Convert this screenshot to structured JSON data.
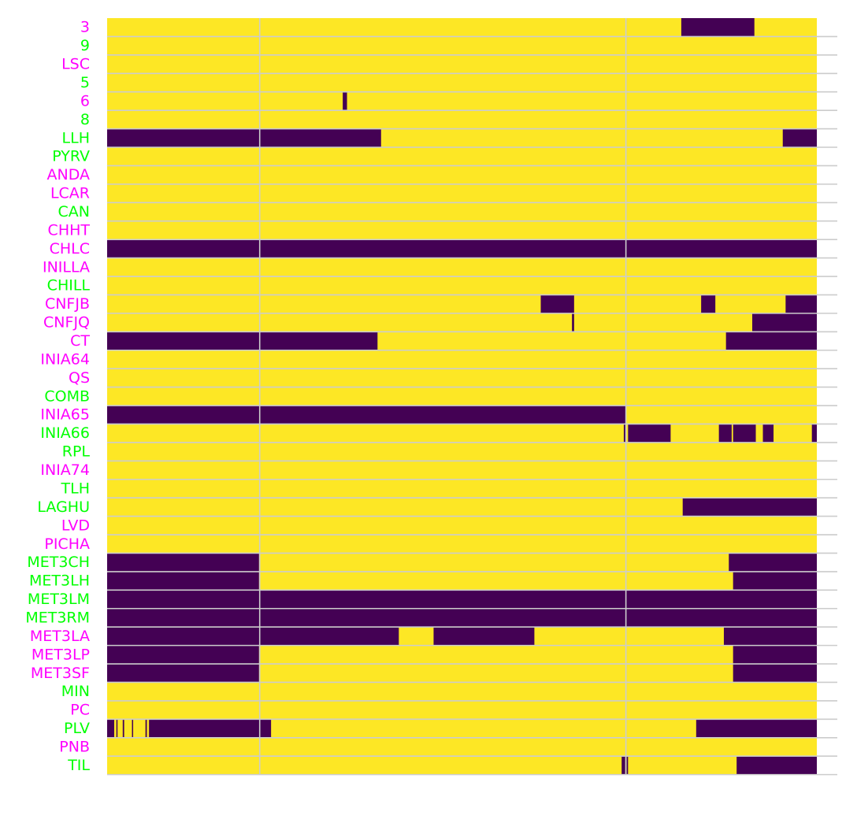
{
  "chart_data": {
    "type": "heatmap",
    "title": "",
    "xlabel": "",
    "ylabel": "",
    "x_range": [
      0,
      1
    ],
    "value_colors": {
      "1": "#fde725",
      "0": "#440154"
    },
    "grid": true,
    "grid_color": "#cccccc",
    "x_gridlines": [
      0.215,
      0.731
    ],
    "label_colors": {
      "magenta": "#ff00ff",
      "green": "#00ff00"
    },
    "rows": [
      {
        "label": "3",
        "label_color": "magenta",
        "absent": [
          [
            0.809,
            0.912
          ]
        ]
      },
      {
        "label": "9",
        "label_color": "green",
        "absent": []
      },
      {
        "label": "LSC",
        "label_color": "magenta",
        "absent": []
      },
      {
        "label": "5",
        "label_color": "green",
        "absent": []
      },
      {
        "label": "6",
        "label_color": "magenta",
        "absent": [
          [
            0.332,
            0.338
          ]
        ]
      },
      {
        "label": "8",
        "label_color": "green",
        "absent": []
      },
      {
        "label": "LLH",
        "label_color": "green",
        "absent": [
          [
            0,
            0.386
          ],
          [
            0.952,
            1
          ]
        ]
      },
      {
        "label": "PYRV",
        "label_color": "green",
        "absent": []
      },
      {
        "label": "ANDA",
        "label_color": "magenta",
        "absent": []
      },
      {
        "label": "LCAR",
        "label_color": "magenta",
        "absent": []
      },
      {
        "label": "CAN",
        "label_color": "green",
        "absent": []
      },
      {
        "label": "CHHT",
        "label_color": "magenta",
        "absent": []
      },
      {
        "label": "CHLC",
        "label_color": "magenta",
        "absent": [
          [
            0,
            1
          ]
        ]
      },
      {
        "label": "INILLA",
        "label_color": "magenta",
        "absent": []
      },
      {
        "label": "CHILL",
        "label_color": "green",
        "absent": []
      },
      {
        "label": "CNFJB",
        "label_color": "magenta",
        "absent": [
          [
            0.611,
            0.658
          ],
          [
            0.837,
            0.857
          ],
          [
            0.956,
            1
          ]
        ]
      },
      {
        "label": "CNFJQ",
        "label_color": "magenta",
        "absent": [
          [
            0.655,
            0.658
          ],
          [
            0.909,
            1
          ]
        ]
      },
      {
        "label": "CT",
        "label_color": "magenta",
        "absent": [
          [
            0,
            0.381
          ],
          [
            0.872,
            1
          ]
        ]
      },
      {
        "label": "INIA64",
        "label_color": "magenta",
        "absent": []
      },
      {
        "label": "QS",
        "label_color": "magenta",
        "absent": []
      },
      {
        "label": "COMB",
        "label_color": "green",
        "absent": []
      },
      {
        "label": "INIA65",
        "label_color": "magenta",
        "absent": [
          [
            0,
            0.731
          ]
        ]
      },
      {
        "label": "INIA66",
        "label_color": "green",
        "absent": [
          [
            0.728,
            0.731
          ],
          [
            0.734,
            0.794
          ],
          [
            0.862,
            0.88
          ],
          [
            0.882,
            0.914
          ],
          [
            0.924,
            0.939
          ],
          [
            0.993,
            1
          ]
        ]
      },
      {
        "label": "RPL",
        "label_color": "green",
        "absent": []
      },
      {
        "label": "INIA74",
        "label_color": "magenta",
        "absent": []
      },
      {
        "label": "TLH",
        "label_color": "green",
        "absent": []
      },
      {
        "label": "LAGHU",
        "label_color": "green",
        "absent": [
          [
            0.811,
            1
          ]
        ]
      },
      {
        "label": "LVD",
        "label_color": "magenta",
        "absent": []
      },
      {
        "label": "PICHA",
        "label_color": "magenta",
        "absent": []
      },
      {
        "label": "MET3CH",
        "label_color": "green",
        "absent": [
          [
            0,
            0.214
          ],
          [
            0.876,
            1
          ]
        ]
      },
      {
        "label": "MET3LH",
        "label_color": "green",
        "absent": [
          [
            0,
            0.214
          ],
          [
            0.882,
            1
          ]
        ]
      },
      {
        "label": "MET3LM",
        "label_color": "green",
        "absent": [
          [
            0,
            1
          ]
        ]
      },
      {
        "label": "MET3RM",
        "label_color": "green",
        "absent": [
          [
            0,
            1
          ]
        ]
      },
      {
        "label": "MET3LA",
        "label_color": "magenta",
        "absent": [
          [
            0,
            0.411
          ],
          [
            0.46,
            0.602
          ],
          [
            0.869,
            1
          ]
        ]
      },
      {
        "label": "MET3LP",
        "label_color": "magenta",
        "absent": [
          [
            0,
            0.214
          ],
          [
            0.882,
            1
          ]
        ]
      },
      {
        "label": "MET3SF",
        "label_color": "magenta",
        "absent": [
          [
            0,
            0.214
          ],
          [
            0.882,
            1
          ]
        ]
      },
      {
        "label": "MIN",
        "label_color": "green",
        "absent": []
      },
      {
        "label": "PC",
        "label_color": "magenta",
        "absent": []
      },
      {
        "label": "PLV",
        "label_color": "green",
        "absent": [
          [
            0,
            0.01
          ],
          [
            0.013,
            0.014
          ],
          [
            0.022,
            0.024
          ],
          [
            0.035,
            0.036
          ],
          [
            0.054,
            0.056
          ],
          [
            0.059,
            0.231
          ],
          [
            0.83,
            1
          ]
        ]
      },
      {
        "label": "PNB",
        "label_color": "magenta",
        "absent": []
      },
      {
        "label": "TIL",
        "label_color": "green",
        "absent": [
          [
            0.725,
            0.73
          ],
          [
            0.732,
            0.734
          ],
          [
            0.887,
            1
          ]
        ]
      }
    ]
  }
}
